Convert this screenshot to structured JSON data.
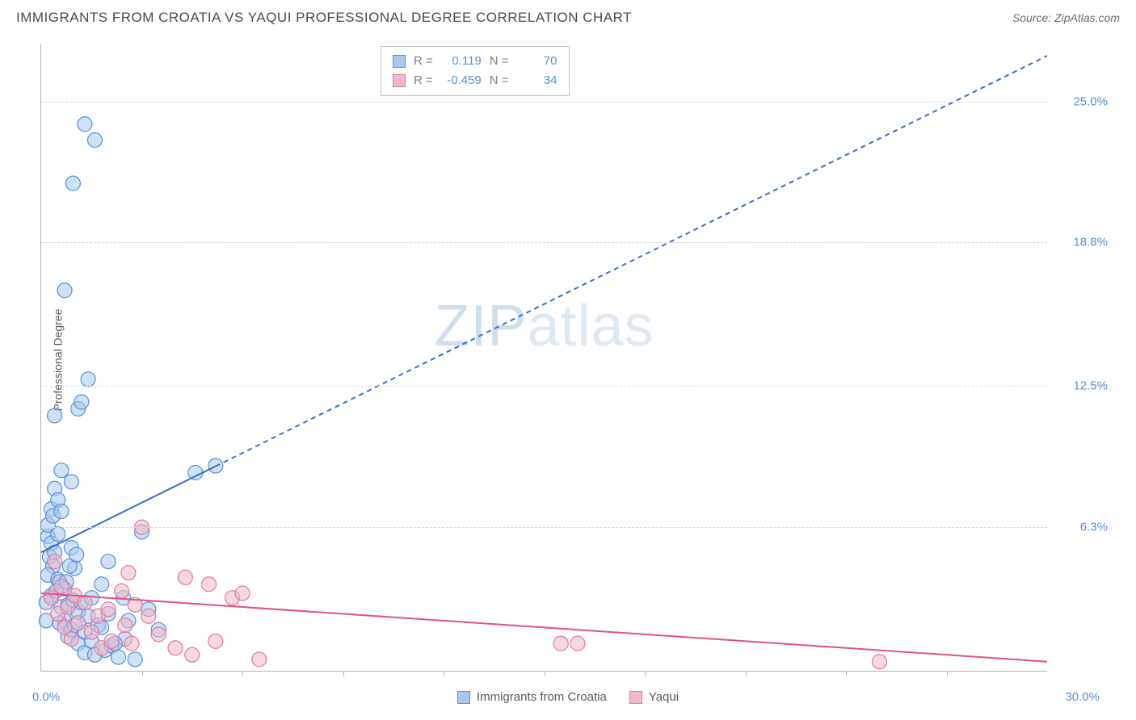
{
  "header": {
    "title": "IMMIGRANTS FROM CROATIA VS YAQUI PROFESSIONAL DEGREE CORRELATION CHART",
    "source_prefix": "Source: ",
    "source": "ZipAtlas.com"
  },
  "watermark": {
    "part1": "ZIP",
    "part2": "atlas"
  },
  "chart": {
    "type": "scatter",
    "xlim": [
      0,
      30
    ],
    "ylim": [
      0,
      27.5
    ],
    "xlabel_min": "0.0%",
    "xlabel_max": "30.0%",
    "ylabel": "Professional Degree",
    "y_gridlines": [
      6.3,
      12.5,
      18.8,
      25.0
    ],
    "y_grid_labels": [
      "6.3%",
      "12.5%",
      "18.8%",
      "25.0%"
    ],
    "x_tick_step": 3.0,
    "grid_color": "#d8d8d8",
    "axis_color": "#b0b0b0",
    "tick_label_color": "#5b8dd6",
    "background_color": "#ffffff",
    "label_fontsize": 14,
    "tick_fontsize": 15
  },
  "series": [
    {
      "name": "Immigrants from Croatia",
      "R": "0.119",
      "N": "70",
      "fill": "#a8c8ec",
      "stroke": "#5b8dd6",
      "line_color": "#3a6fc0",
      "marker_radius": 9,
      "fill_opacity": 0.55,
      "trend": {
        "x1": 0,
        "y1": 5.2,
        "x2": 30,
        "y2": 27.0,
        "solid_until_x": 5.2,
        "dash": "6,5",
        "width": 2
      },
      "points": [
        [
          0.2,
          5.9
        ],
        [
          0.2,
          6.4
        ],
        [
          0.25,
          5.0
        ],
        [
          0.3,
          7.1
        ],
        [
          0.3,
          5.6
        ],
        [
          0.35,
          4.6
        ],
        [
          0.35,
          6.8
        ],
        [
          0.2,
          4.2
        ],
        [
          0.4,
          8.0
        ],
        [
          0.4,
          5.2
        ],
        [
          0.5,
          4.0
        ],
        [
          0.5,
          6.0
        ],
        [
          0.55,
          3.9
        ],
        [
          0.5,
          7.5
        ],
        [
          0.6,
          7.0
        ],
        [
          0.3,
          3.3
        ],
        [
          0.6,
          2.8
        ],
        [
          0.7,
          2.2
        ],
        [
          0.7,
          3.6
        ],
        [
          0.8,
          1.5
        ],
        [
          0.8,
          2.9
        ],
        [
          0.9,
          5.4
        ],
        [
          0.9,
          1.8
        ],
        [
          1.0,
          2.0
        ],
        [
          1.0,
          4.5
        ],
        [
          1.1,
          2.6
        ],
        [
          1.1,
          1.2
        ],
        [
          1.2,
          3.0
        ],
        [
          1.3,
          1.7
        ],
        [
          1.3,
          0.8
        ],
        [
          1.4,
          2.4
        ],
        [
          1.5,
          3.2
        ],
        [
          1.5,
          1.3
        ],
        [
          1.6,
          0.7
        ],
        [
          1.7,
          2.0
        ],
        [
          1.8,
          3.8
        ],
        [
          1.8,
          1.9
        ],
        [
          1.9,
          0.9
        ],
        [
          2.0,
          2.5
        ],
        [
          2.1,
          1.1
        ],
        [
          2.3,
          0.6
        ],
        [
          2.5,
          1.4
        ],
        [
          2.6,
          2.2
        ],
        [
          2.8,
          0.5
        ],
        [
          3.0,
          6.1
        ],
        [
          3.2,
          2.7
        ],
        [
          3.5,
          1.8
        ],
        [
          0.9,
          8.3
        ],
        [
          0.6,
          8.8
        ],
        [
          0.4,
          11.2
        ],
        [
          1.1,
          11.5
        ],
        [
          1.2,
          11.8
        ],
        [
          1.4,
          12.8
        ],
        [
          0.7,
          16.7
        ],
        [
          0.95,
          21.4
        ],
        [
          1.6,
          23.3
        ],
        [
          1.3,
          24.0
        ],
        [
          0.15,
          3.0
        ],
        [
          0.15,
          2.2
        ],
        [
          0.45,
          3.5
        ],
        [
          0.55,
          2.1
        ],
        [
          0.75,
          3.9
        ],
        [
          0.85,
          4.6
        ],
        [
          0.95,
          3.1
        ],
        [
          1.05,
          5.1
        ],
        [
          2.2,
          1.2
        ],
        [
          2.45,
          3.2
        ],
        [
          4.6,
          8.7
        ],
        [
          5.2,
          9.0
        ],
        [
          2.0,
          4.8
        ]
      ]
    },
    {
      "name": "Yaqui",
      "R": "-0.459",
      "N": "34",
      "fill": "#f0b8c8",
      "stroke": "#e078a0",
      "line_color": "#e05088",
      "marker_radius": 9,
      "fill_opacity": 0.55,
      "trend": {
        "x1": 0,
        "y1": 3.4,
        "x2": 30,
        "y2": 0.4,
        "solid_until_x": 30,
        "dash": "",
        "width": 2
      },
      "points": [
        [
          0.3,
          3.2
        ],
        [
          0.4,
          4.8
        ],
        [
          0.5,
          2.5
        ],
        [
          0.6,
          3.7
        ],
        [
          0.7,
          1.9
        ],
        [
          0.8,
          2.8
        ],
        [
          0.9,
          1.4
        ],
        [
          1.0,
          3.3
        ],
        [
          1.1,
          2.1
        ],
        [
          1.3,
          3.0
        ],
        [
          1.5,
          1.7
        ],
        [
          1.7,
          2.4
        ],
        [
          1.8,
          1.0
        ],
        [
          2.0,
          2.7
        ],
        [
          2.1,
          1.3
        ],
        [
          2.4,
          3.5
        ],
        [
          2.5,
          2.0
        ],
        [
          2.6,
          4.3
        ],
        [
          2.7,
          1.2
        ],
        [
          2.8,
          2.9
        ],
        [
          3.0,
          6.3
        ],
        [
          3.2,
          2.4
        ],
        [
          3.5,
          1.6
        ],
        [
          4.0,
          1.0
        ],
        [
          4.3,
          4.1
        ],
        [
          4.5,
          0.7
        ],
        [
          5.0,
          3.8
        ],
        [
          5.2,
          1.3
        ],
        [
          5.7,
          3.2
        ],
        [
          6.0,
          3.4
        ],
        [
          6.5,
          0.5
        ],
        [
          15.5,
          1.2
        ],
        [
          16.0,
          1.2
        ],
        [
          25.0,
          0.4
        ]
      ]
    }
  ],
  "stat_legend": {
    "r_label": "R =",
    "n_label": "N ="
  }
}
